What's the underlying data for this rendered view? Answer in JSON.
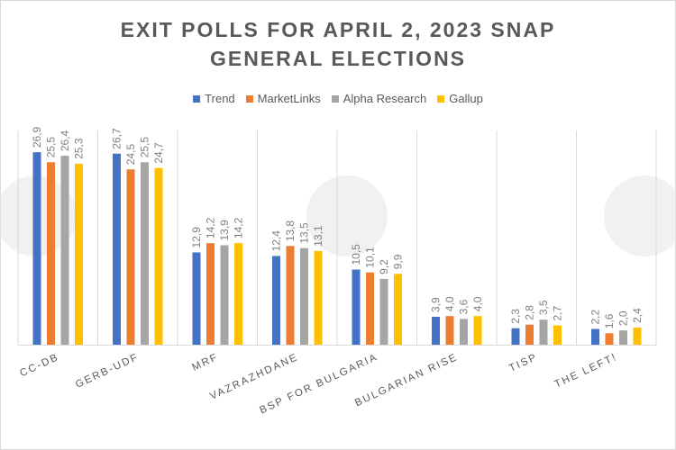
{
  "chart_data": {
    "type": "bar",
    "title": "EXIT POLLS FOR APRIL 2, 2023 SNAP GENERAL ELECTIONS",
    "title_lines": [
      "EXIT POLLS FOR APRIL 2, 2023 SNAP",
      "GENERAL ELECTIONS"
    ],
    "categories": [
      "CC-DB",
      "GERB-UDF",
      "MRF",
      "VAZRAZHDANE",
      "BSP FOR BULGARIA",
      "BULGARIAN RISE",
      "TISP",
      "THE LEFT!"
    ],
    "series": [
      {
        "name": "Trend",
        "color": "#4472c4",
        "values": [
          26.9,
          26.7,
          12.9,
          12.4,
          10.5,
          3.9,
          2.3,
          2.2
        ],
        "labels": [
          "26,9",
          "26,7",
          "12,9",
          "12,4",
          "10,5",
          "3,9",
          "2,3",
          "2,2"
        ]
      },
      {
        "name": "MarketLinks",
        "color": "#ed7d31",
        "values": [
          25.5,
          24.5,
          14.2,
          13.8,
          10.1,
          4.0,
          2.8,
          1.6
        ],
        "labels": [
          "25,5",
          "24,5",
          "14,2",
          "13,8",
          "10,1",
          "4,0",
          "2,8",
          "1,6"
        ]
      },
      {
        "name": "Alpha Research",
        "color": "#a5a5a5",
        "values": [
          26.4,
          25.5,
          13.9,
          13.5,
          9.2,
          3.6,
          3.5,
          2.0
        ],
        "labels": [
          "26,4",
          "25,5",
          "13,9",
          "13,5",
          "9,2",
          "3,6",
          "3,5",
          "2,0"
        ]
      },
      {
        "name": "Gallup",
        "color": "#ffc000",
        "values": [
          25.3,
          24.7,
          14.2,
          13.1,
          9.9,
          4.0,
          2.7,
          2.4
        ],
        "labels": [
          "25,3",
          "24,7",
          "14,2",
          "13,1",
          "9,9",
          "4,0",
          "2,7",
          "2,4"
        ]
      }
    ],
    "ylim": [
      0,
      30
    ],
    "legend": "top",
    "grid": false,
    "category_dividers": true,
    "watermark": "BTA logo"
  }
}
